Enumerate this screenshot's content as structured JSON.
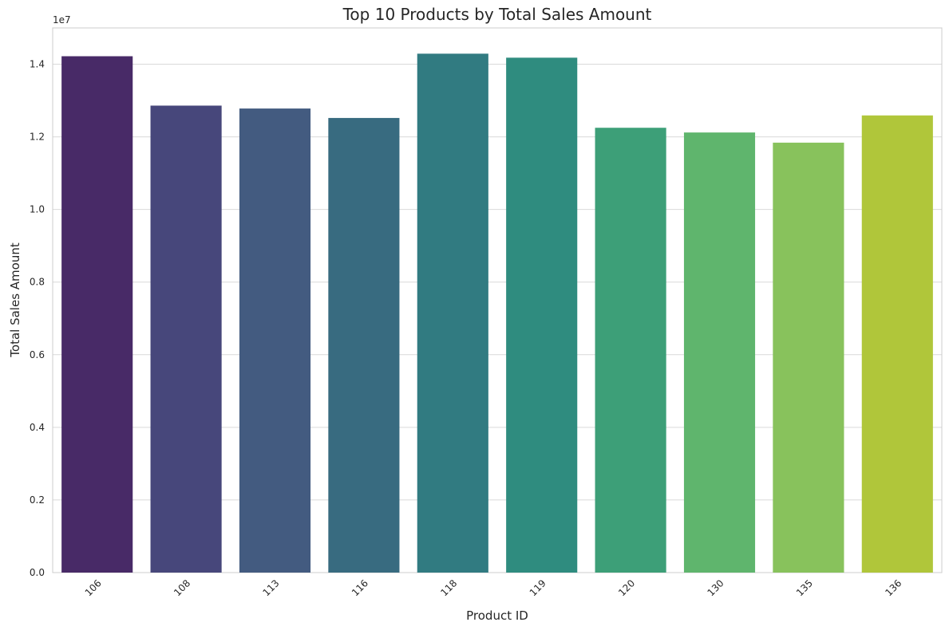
{
  "chart_data": {
    "type": "bar",
    "title": "Top 10 Products by Total Sales Amount",
    "xlabel": "Product ID",
    "ylabel": "Total Sales Amount",
    "y_scale_label": "1e7",
    "categories": [
      "106",
      "108",
      "113",
      "116",
      "118",
      "119",
      "120",
      "130",
      "135",
      "136"
    ],
    "values": [
      14220000,
      12860000,
      12780000,
      12520000,
      14290000,
      14180000,
      12250000,
      12120000,
      11840000,
      12590000
    ],
    "ylim": [
      0,
      15000000
    ],
    "yticks": [
      0,
      2000000,
      4000000,
      6000000,
      8000000,
      10000000,
      12000000,
      14000000
    ],
    "ytick_labels": [
      "0.0",
      "0.2",
      "0.4",
      "0.6",
      "0.8",
      "1.0",
      "1.2",
      "1.4"
    ],
    "grid": "horizontal",
    "colors": [
      "#482a67",
      "#47477b",
      "#435b80",
      "#386b80",
      "#317b81",
      "#2f8c7f",
      "#3d9f78",
      "#5fb56d",
      "#88c25c",
      "#b0c63a"
    ]
  }
}
